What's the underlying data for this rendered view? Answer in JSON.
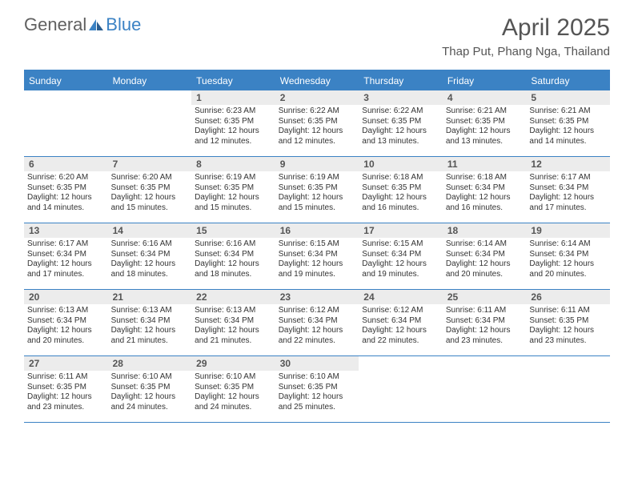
{
  "logo": {
    "text1": "General",
    "text2": "Blue"
  },
  "title": "April 2025",
  "location": "Thap Put, Phang Nga, Thailand",
  "colors": {
    "accent": "#3b82c4",
    "band": "#ececec",
    "text": "#333333",
    "title_text": "#555555"
  },
  "weekdays": [
    "Sunday",
    "Monday",
    "Tuesday",
    "Wednesday",
    "Thursday",
    "Friday",
    "Saturday"
  ],
  "weeks": [
    [
      {
        "n": "",
        "sr": "",
        "ss": "",
        "dl": ""
      },
      {
        "n": "",
        "sr": "",
        "ss": "",
        "dl": ""
      },
      {
        "n": "1",
        "sr": "6:23 AM",
        "ss": "6:35 PM",
        "dl": "12 hours and 12 minutes."
      },
      {
        "n": "2",
        "sr": "6:22 AM",
        "ss": "6:35 PM",
        "dl": "12 hours and 12 minutes."
      },
      {
        "n": "3",
        "sr": "6:22 AM",
        "ss": "6:35 PM",
        "dl": "12 hours and 13 minutes."
      },
      {
        "n": "4",
        "sr": "6:21 AM",
        "ss": "6:35 PM",
        "dl": "12 hours and 13 minutes."
      },
      {
        "n": "5",
        "sr": "6:21 AM",
        "ss": "6:35 PM",
        "dl": "12 hours and 14 minutes."
      }
    ],
    [
      {
        "n": "6",
        "sr": "6:20 AM",
        "ss": "6:35 PM",
        "dl": "12 hours and 14 minutes."
      },
      {
        "n": "7",
        "sr": "6:20 AM",
        "ss": "6:35 PM",
        "dl": "12 hours and 15 minutes."
      },
      {
        "n": "8",
        "sr": "6:19 AM",
        "ss": "6:35 PM",
        "dl": "12 hours and 15 minutes."
      },
      {
        "n": "9",
        "sr": "6:19 AM",
        "ss": "6:35 PM",
        "dl": "12 hours and 15 minutes."
      },
      {
        "n": "10",
        "sr": "6:18 AM",
        "ss": "6:35 PM",
        "dl": "12 hours and 16 minutes."
      },
      {
        "n": "11",
        "sr": "6:18 AM",
        "ss": "6:34 PM",
        "dl": "12 hours and 16 minutes."
      },
      {
        "n": "12",
        "sr": "6:17 AM",
        "ss": "6:34 PM",
        "dl": "12 hours and 17 minutes."
      }
    ],
    [
      {
        "n": "13",
        "sr": "6:17 AM",
        "ss": "6:34 PM",
        "dl": "12 hours and 17 minutes."
      },
      {
        "n": "14",
        "sr": "6:16 AM",
        "ss": "6:34 PM",
        "dl": "12 hours and 18 minutes."
      },
      {
        "n": "15",
        "sr": "6:16 AM",
        "ss": "6:34 PM",
        "dl": "12 hours and 18 minutes."
      },
      {
        "n": "16",
        "sr": "6:15 AM",
        "ss": "6:34 PM",
        "dl": "12 hours and 19 minutes."
      },
      {
        "n": "17",
        "sr": "6:15 AM",
        "ss": "6:34 PM",
        "dl": "12 hours and 19 minutes."
      },
      {
        "n": "18",
        "sr": "6:14 AM",
        "ss": "6:34 PM",
        "dl": "12 hours and 20 minutes."
      },
      {
        "n": "19",
        "sr": "6:14 AM",
        "ss": "6:34 PM",
        "dl": "12 hours and 20 minutes."
      }
    ],
    [
      {
        "n": "20",
        "sr": "6:13 AM",
        "ss": "6:34 PM",
        "dl": "12 hours and 20 minutes."
      },
      {
        "n": "21",
        "sr": "6:13 AM",
        "ss": "6:34 PM",
        "dl": "12 hours and 21 minutes."
      },
      {
        "n": "22",
        "sr": "6:13 AM",
        "ss": "6:34 PM",
        "dl": "12 hours and 21 minutes."
      },
      {
        "n": "23",
        "sr": "6:12 AM",
        "ss": "6:34 PM",
        "dl": "12 hours and 22 minutes."
      },
      {
        "n": "24",
        "sr": "6:12 AM",
        "ss": "6:34 PM",
        "dl": "12 hours and 22 minutes."
      },
      {
        "n": "25",
        "sr": "6:11 AM",
        "ss": "6:34 PM",
        "dl": "12 hours and 23 minutes."
      },
      {
        "n": "26",
        "sr": "6:11 AM",
        "ss": "6:35 PM",
        "dl": "12 hours and 23 minutes."
      }
    ],
    [
      {
        "n": "27",
        "sr": "6:11 AM",
        "ss": "6:35 PM",
        "dl": "12 hours and 23 minutes."
      },
      {
        "n": "28",
        "sr": "6:10 AM",
        "ss": "6:35 PM",
        "dl": "12 hours and 24 minutes."
      },
      {
        "n": "29",
        "sr": "6:10 AM",
        "ss": "6:35 PM",
        "dl": "12 hours and 24 minutes."
      },
      {
        "n": "30",
        "sr": "6:10 AM",
        "ss": "6:35 PM",
        "dl": "12 hours and 25 minutes."
      },
      {
        "n": "",
        "sr": "",
        "ss": "",
        "dl": ""
      },
      {
        "n": "",
        "sr": "",
        "ss": "",
        "dl": ""
      },
      {
        "n": "",
        "sr": "",
        "ss": "",
        "dl": ""
      }
    ]
  ],
  "labels": {
    "sunrise": "Sunrise: ",
    "sunset": "Sunset: ",
    "daylight": "Daylight: "
  }
}
